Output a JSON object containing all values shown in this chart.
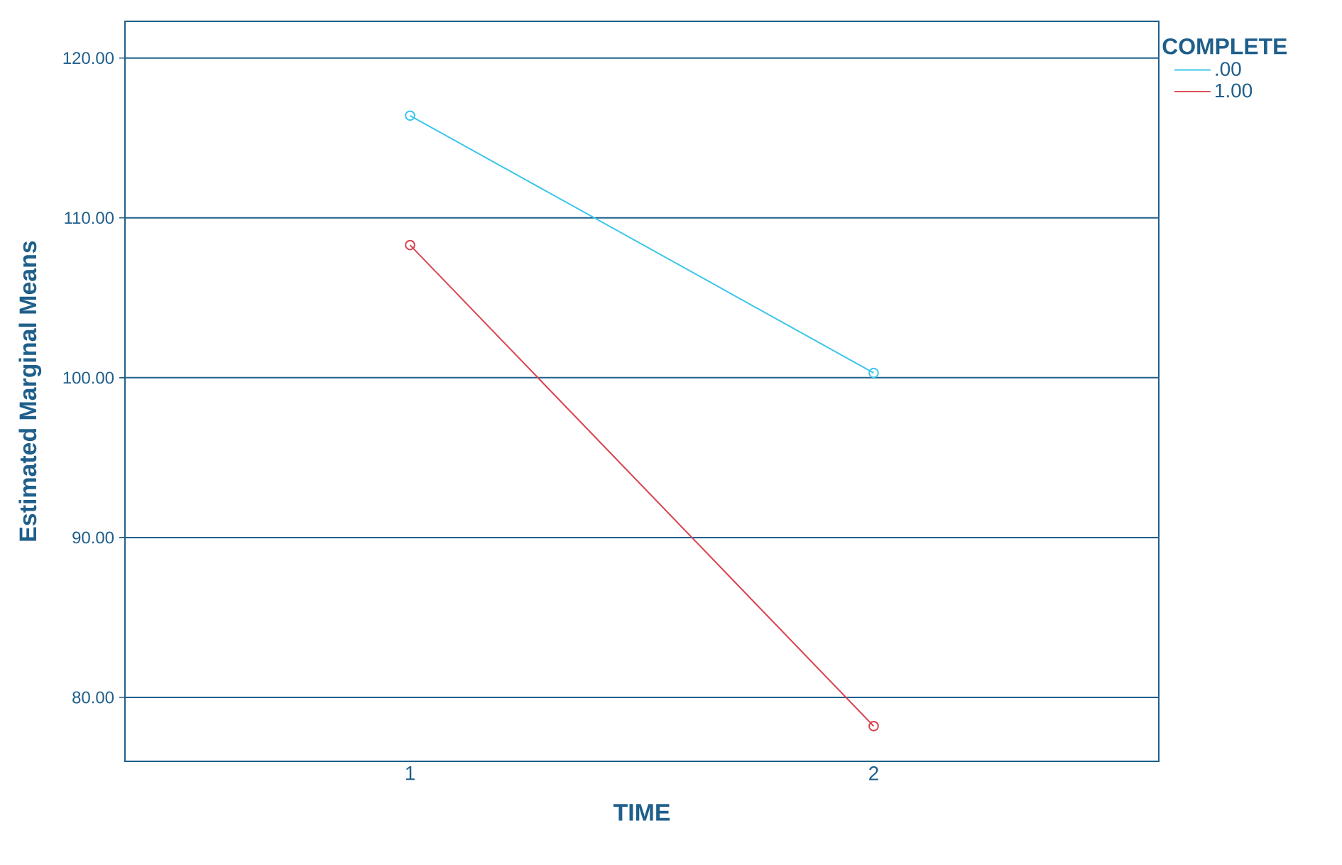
{
  "chart_data": {
    "type": "line",
    "xlabel": "TIME",
    "ylabel": "Estimated Marginal Means",
    "legend_title": "COMPLETE",
    "categories": [
      "1",
      "2"
    ],
    "series": [
      {
        "name": ".00",
        "color": "#3bc5ea",
        "values": [
          116.4,
          100.3
        ]
      },
      {
        "name": "1.00",
        "color": "#d9434f",
        "values": [
          108.3,
          78.2
        ]
      }
    ],
    "ylim": [
      76.0,
      122.3
    ],
    "yticks": [
      {
        "value": 80,
        "label": "80.00"
      },
      {
        "value": 90,
        "label": "90.00"
      },
      {
        "value": 100,
        "label": "100.00"
      },
      {
        "value": 110,
        "label": "110.00"
      },
      {
        "value": 120,
        "label": "120.00"
      }
    ],
    "grid": "y",
    "legend": "top right",
    "marker": "circle",
    "line_style": "solid"
  }
}
